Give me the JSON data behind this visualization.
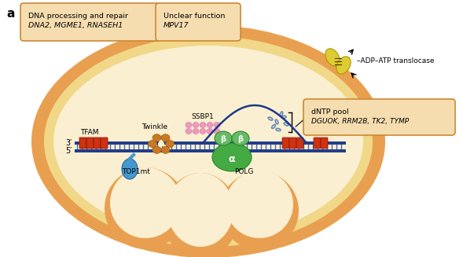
{
  "bg_color": "#ffffff",
  "mito_outer_color": "#E8A050",
  "mito_inner_color": "#F0D888",
  "mito_lumen_color": "#FAEFD0",
  "dna_strand_color": "#1E3A8A",
  "dna_rung_color": "#4466BB",
  "tfam_color": "#CC3311",
  "twinkle_color": "#CC7722",
  "ssbp_color": "#EE99BB",
  "polg_alpha_color": "#44AA44",
  "polg_beta_color": "#66BB66",
  "top1mt_color": "#4499CC",
  "dntp_color": "#6688BB",
  "translocase_color": "#DDCC33",
  "box_bg": "#F5DDB0",
  "box_edge": "#CC8833",
  "arc_color": "#1E3A8A",
  "title_a": "a",
  "box1_line1": "DNA processing and repair",
  "box1_line2": "DNA2, MGME1, RNASEH1",
  "box2_line1": "Unclear function",
  "box2_line2": "MPV17",
  "box3_line1": "dNTP pool",
  "box3_line2": "DGUOK, RRM2B, TK2, TYMP",
  "label_translocase": "–ADP–ATP translocase",
  "label_tfam": "TFAM",
  "label_twinkle": "Twinkle",
  "label_ssbp": "SSBP1",
  "label_top1mt": "TOP1mt",
  "label_polg": "POLG",
  "label_3prime": "3′",
  "label_5prime": "5′",
  "label_alpha": "α",
  "label_beta": "β"
}
